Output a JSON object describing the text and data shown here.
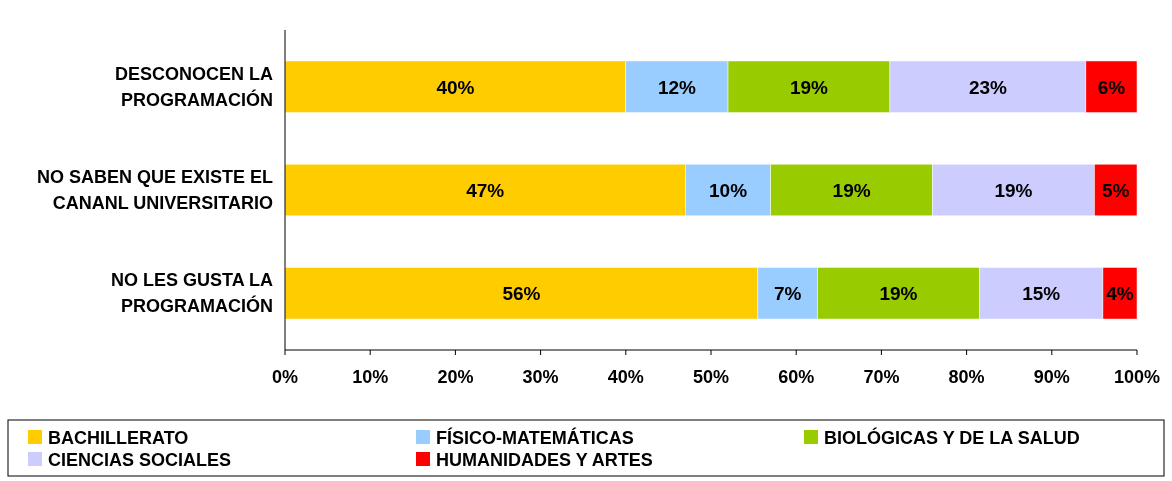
{
  "chart_data": {
    "type": "bar",
    "orientation": "horizontal",
    "stacked": true,
    "categories": [
      "DESCONOCEN LA PROGRAMACIÓN",
      "NO SABEN QUE EXISTE EL CANANL UNIVERSITARIO",
      "NO LES GUSTA LA PROGRAMACIÓN"
    ],
    "series": [
      {
        "name": "BACHILLERATO",
        "color": "#ffcc00",
        "values": [
          40,
          47,
          55.5
        ],
        "value_labels": [
          "40%",
          "47%",
          "56%"
        ]
      },
      {
        "name": "FÍSICO-MATEMÁTICAS",
        "color": "#99ccff",
        "values": [
          12,
          10,
          7
        ],
        "value_labels": [
          "12%",
          "10%",
          "7%"
        ]
      },
      {
        "name": "BIOLÓGICAS Y DE LA SALUD",
        "color": "#99cc00",
        "values": [
          19,
          19,
          19
        ],
        "value_labels": [
          "19%",
          "19%",
          "19%"
        ]
      },
      {
        "name": "CIENCIAS SOCIALES",
        "color": "#ccccff",
        "values": [
          23,
          19,
          14.5
        ],
        "value_labels": [
          "23%",
          "19%",
          "15%"
        ]
      },
      {
        "name": "HUMANIDADES Y ARTES",
        "color": "#ff0000",
        "values": [
          6,
          5,
          4
        ],
        "value_labels": [
          "6%",
          "5%",
          "4%"
        ]
      }
    ],
    "xlim": [
      0,
      100
    ],
    "xticks": [
      {
        "value": 0,
        "label": "0%"
      },
      {
        "value": 10,
        "label": "10%"
      },
      {
        "value": 20,
        "label": "20%"
      },
      {
        "value": 30,
        "label": "30%"
      },
      {
        "value": 40,
        "label": "40%"
      },
      {
        "value": 50,
        "label": "50%"
      },
      {
        "value": 60,
        "label": "60%"
      },
      {
        "value": 70,
        "label": "70%"
      },
      {
        "value": 80,
        "label": "80%"
      },
      {
        "value": 90,
        "label": "90%"
      },
      {
        "value": 100,
        "label": "100%"
      }
    ],
    "grid": false,
    "legend": "bottom"
  }
}
